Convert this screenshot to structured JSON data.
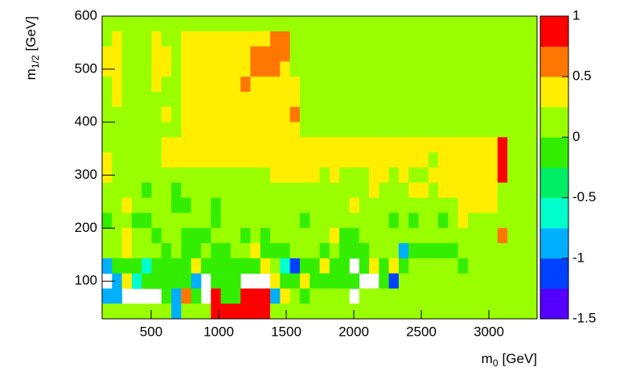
{
  "chart_data": {
    "type": "heatmap",
    "xlabel": {
      "base": "m",
      "sub": "0",
      "unit": "[GeV]"
    },
    "ylabel": {
      "base": "m",
      "sub": "1/2",
      "unit": "[GeV]"
    },
    "xlim": [
      137,
      3357
    ],
    "xticks": [
      500,
      1000,
      1500,
      2000,
      2500,
      3000
    ],
    "ylim": [
      29,
      600
    ],
    "yticks": [
      100,
      200,
      300,
      400,
      500,
      600
    ],
    "zlim": [
      -1.5,
      1
    ],
    "zticks": [
      -1.5,
      -1,
      -0.5,
      0,
      0.5,
      1
    ],
    "colors": [
      "#5500ff",
      "#0040ff",
      "#00b0ff",
      "#00ffcc",
      "#00ee66",
      "#33ee00",
      "#99ff00",
      "#ffee00",
      "#ff7700",
      "#ff0000"
    ],
    "z": [
      [
        0.1,
        0.1,
        0.1,
        0.1,
        0.1,
        0.1,
        0.1,
        0.1,
        0.1,
        0.1,
        0.1,
        0.1,
        0.1,
        0.1,
        0.1,
        0.1,
        0.1,
        0.1,
        0.1,
        0.1,
        0.1,
        0.1,
        0.1,
        0.1,
        0.1,
        0.1,
        0.1,
        0.1,
        0.1,
        0.1,
        0.1,
        0.1,
        0.1,
        0.1,
        0.1,
        0.1,
        0.1,
        0.1,
        0.1,
        0.1,
        0.1,
        0.1,
        0.1,
        0.1
      ],
      [
        0.1,
        0.4,
        0.1,
        0.1,
        0.1,
        0.4,
        0.1,
        0.1,
        0.4,
        0.4,
        0.4,
        0.4,
        0.4,
        0.4,
        0.4,
        0.4,
        0.4,
        0.6,
        0.6,
        0.1,
        0.1,
        0.1,
        0.1,
        0.1,
        0.1,
        0.1,
        0.1,
        0.1,
        0.1,
        0.1,
        0.1,
        0.1,
        0.1,
        0.1,
        0.1,
        0.1,
        0.1,
        0.1,
        0.1,
        0.1,
        0.1,
        0.1,
        0.1,
        0.1
      ],
      [
        0.4,
        0.4,
        0.1,
        0.1,
        0.1,
        0.4,
        0.4,
        0.1,
        0.4,
        0.4,
        0.4,
        0.4,
        0.4,
        0.4,
        0.4,
        0.6,
        0.6,
        0.6,
        0.6,
        0.1,
        0.1,
        0.1,
        0.1,
        0.1,
        0.1,
        0.1,
        0.1,
        0.1,
        0.1,
        0.1,
        0.1,
        0.1,
        0.1,
        0.1,
        0.1,
        0.1,
        0.1,
        0.1,
        0.1,
        0.1,
        0.1,
        0.1,
        0.1,
        0.1
      ],
      [
        0.4,
        0.4,
        0.1,
        0.1,
        0.1,
        0.4,
        0.4,
        0.1,
        0.4,
        0.4,
        0.4,
        0.4,
        0.4,
        0.4,
        0.4,
        0.6,
        0.6,
        0.6,
        0.4,
        0.1,
        0.1,
        0.1,
        0.1,
        0.1,
        0.1,
        0.1,
        0.1,
        0.1,
        0.1,
        0.1,
        0.1,
        0.1,
        0.1,
        0.1,
        0.1,
        0.1,
        0.1,
        0.1,
        0.1,
        0.1,
        0.1,
        0.1,
        0.1,
        0.1
      ],
      [
        0.1,
        0.4,
        0.1,
        0.1,
        0.1,
        0.4,
        0.1,
        0.1,
        0.4,
        0.4,
        0.4,
        0.4,
        0.4,
        0.4,
        0.6,
        0.4,
        0.4,
        0.4,
        0.4,
        0.4,
        0.1,
        0.1,
        0.1,
        0.1,
        0.1,
        0.1,
        0.1,
        0.1,
        0.1,
        0.1,
        0.1,
        0.1,
        0.1,
        0.1,
        0.1,
        0.1,
        0.1,
        0.1,
        0.1,
        0.1,
        0.1,
        0.1,
        0.1,
        0.1
      ],
      [
        0.1,
        0.4,
        0.1,
        0.1,
        0.1,
        0.1,
        0.1,
        0.1,
        0.4,
        0.4,
        0.4,
        0.4,
        0.4,
        0.4,
        0.4,
        0.4,
        0.4,
        0.4,
        0.4,
        0.4,
        0.1,
        0.1,
        0.1,
        0.1,
        0.1,
        0.1,
        0.1,
        0.1,
        0.1,
        0.1,
        0.1,
        0.1,
        0.1,
        0.1,
        0.1,
        0.1,
        0.1,
        0.1,
        0.1,
        0.1,
        0.1,
        0.1,
        0.1,
        0.1
      ],
      [
        0.1,
        0.1,
        0.1,
        0.1,
        0.1,
        0.1,
        0.4,
        0.1,
        0.4,
        0.4,
        0.4,
        0.4,
        0.4,
        0.4,
        0.4,
        0.4,
        0.4,
        0.4,
        0.4,
        0.6,
        0.1,
        0.1,
        0.1,
        0.1,
        0.1,
        0.1,
        0.1,
        0.1,
        0.1,
        0.1,
        0.1,
        0.1,
        0.1,
        0.1,
        0.1,
        0.1,
        0.1,
        0.1,
        0.1,
        0.1,
        0.1,
        0.1,
        0.1,
        0.1
      ],
      [
        0.1,
        0.1,
        0.1,
        0.1,
        0.1,
        0.1,
        0.1,
        0.1,
        0.4,
        0.4,
        0.4,
        0.4,
        0.4,
        0.4,
        0.4,
        0.4,
        0.4,
        0.4,
        0.4,
        0.4,
        0.1,
        0.1,
        0.1,
        0.1,
        0.1,
        0.1,
        0.1,
        0.1,
        0.1,
        0.1,
        0.1,
        0.1,
        0.1,
        0.1,
        0.1,
        0.1,
        0.1,
        0.1,
        0.1,
        0.1,
        0.1,
        0.1,
        0.1,
        0.1
      ],
      [
        0.1,
        0.1,
        0.1,
        0.1,
        0.1,
        0.1,
        0.4,
        0.4,
        0.4,
        0.4,
        0.4,
        0.4,
        0.4,
        0.4,
        0.4,
        0.4,
        0.4,
        0.4,
        0.4,
        0.4,
        0.4,
        0.4,
        0.4,
        0.4,
        0.4,
        0.4,
        0.4,
        0.4,
        0.4,
        0.4,
        0.4,
        0.4,
        0.4,
        0.4,
        0.4,
        0.4,
        0.4,
        0.4,
        0.4,
        0.4,
        0.9,
        0.1,
        0.1,
        0.1
      ],
      [
        0.4,
        0.1,
        0.1,
        0.1,
        0.1,
        0.1,
        0.4,
        0.4,
        0.4,
        0.4,
        0.4,
        0.4,
        0.4,
        0.4,
        0.4,
        0.4,
        0.4,
        0.4,
        0.4,
        0.4,
        0.4,
        0.4,
        0.4,
        0.4,
        0.4,
        0.4,
        0.4,
        0.4,
        0.4,
        0.4,
        0.4,
        0.4,
        0.4,
        0.1,
        0.4,
        0.4,
        0.4,
        0.4,
        0.4,
        0.4,
        0.9,
        0.1,
        0.1,
        0.1
      ],
      [
        0.4,
        0.1,
        0.1,
        0.1,
        0.1,
        0.1,
        0.1,
        0.1,
        0.1,
        0.1,
        0.1,
        0.1,
        0.1,
        0.1,
        0.1,
        0.1,
        0.1,
        0.4,
        0.4,
        0.4,
        0.4,
        0.4,
        0.1,
        0.4,
        0.1,
        0.1,
        0.1,
        0.4,
        0.4,
        0.1,
        0.4,
        0.1,
        0.1,
        0.4,
        0.4,
        0.4,
        0.4,
        0.4,
        0.4,
        0.4,
        0.9,
        0.1,
        0.1,
        0.1
      ],
      [
        0.1,
        0.1,
        0.1,
        0.1,
        -0.1,
        0.1,
        0.1,
        -0.1,
        0.1,
        0.1,
        0.1,
        0.1,
        0.1,
        0.1,
        0.1,
        0.1,
        0.1,
        0.1,
        0.1,
        0.1,
        0.1,
        0.1,
        0.1,
        0.1,
        0.1,
        0.1,
        0.1,
        0.4,
        0.1,
        0.1,
        0.1,
        0.4,
        0.4,
        0.1,
        0.4,
        0.4,
        0.4,
        0.4,
        0.4,
        0.4,
        0.1,
        0.1,
        0.1,
        0.1
      ],
      [
        0.1,
        0.1,
        0.4,
        0.1,
        0.1,
        0.1,
        0.1,
        -0.1,
        -0.1,
        0.1,
        0.1,
        -0.1,
        0.1,
        0.1,
        0.1,
        0.1,
        0.1,
        0.1,
        0.1,
        0.1,
        0.1,
        0.1,
        0.1,
        0.1,
        0.1,
        0.4,
        0.1,
        0.1,
        0.1,
        0.1,
        0.1,
        0.1,
        0.1,
        0.1,
        0.1,
        0.1,
        0.4,
        0.4,
        0.4,
        0.4,
        0.1,
        0.1,
        0.1,
        0.1
      ],
      [
        -0.1,
        0.1,
        0.1,
        -0.1,
        -0.1,
        0.1,
        0.1,
        0.1,
        0.1,
        0.1,
        0.1,
        -0.1,
        0.1,
        0.1,
        0.1,
        0.1,
        0.1,
        0.1,
        0.1,
        0.1,
        -0.1,
        0.1,
        0.1,
        0.1,
        0.1,
        0.1,
        0.1,
        0.1,
        0.1,
        -0.1,
        0.1,
        -0.1,
        0.1,
        0.1,
        -0.1,
        0.1,
        0.4,
        0.1,
        0.1,
        0.1,
        0.1,
        0.1,
        0.1,
        0.1
      ],
      [
        0.1,
        0.1,
        0.4,
        0.1,
        0.1,
        -0.1,
        0.1,
        0.1,
        -0.1,
        -0.1,
        -0.1,
        0.1,
        0.1,
        0.1,
        -0.1,
        0.1,
        -0.1,
        0.1,
        0.1,
        0.1,
        0.1,
        0.1,
        0.1,
        0.4,
        -0.1,
        -0.1,
        0.1,
        0.1,
        0.1,
        0.1,
        0.1,
        0.1,
        0.1,
        0.1,
        0.1,
        0.1,
        0.1,
        0.1,
        0.1,
        0.1,
        0.6,
        0.1,
        0.1,
        0.1
      ],
      [
        0.1,
        0.1,
        0.4,
        0.1,
        0.1,
        0.1,
        -0.1,
        0.1,
        -0.1,
        -0.1,
        0.1,
        -0.1,
        -0.1,
        0.1,
        0.1,
        0.4,
        -0.1,
        -0.1,
        -0.1,
        0.1,
        0.1,
        0.1,
        -0.1,
        0.1,
        -0.1,
        -0.1,
        -0.1,
        0.1,
        0.1,
        0.1,
        -0.9,
        -0.1,
        -0.1,
        -0.1,
        -0.1,
        -0.1,
        0.1,
        0.1,
        0.1,
        0.1,
        0.1,
        0.1,
        0.1,
        0.1
      ],
      [
        -0.9,
        -0.1,
        -0.1,
        -0.1,
        -0.6,
        -0.1,
        -0.1,
        -0.1,
        -0.1,
        0.4,
        -0.1,
        -0.1,
        -0.1,
        -0.1,
        -0.1,
        -0.1,
        0.4,
        0.1,
        -0.6,
        -1.1,
        -0.1,
        -0.1,
        0.4,
        -0.1,
        -0.1,
        null,
        -0.1,
        0.4,
        -0.1,
        0.4,
        -0.1,
        0.1,
        0.1,
        0.1,
        0.1,
        0.1,
        -0.1,
        0.1,
        0.1,
        0.1,
        0.1,
        0.1,
        0.1,
        0.1
      ],
      [
        null,
        -0.9,
        0.4,
        -0.6,
        -0.1,
        -0.1,
        -0.1,
        -0.1,
        -0.1,
        -0.9,
        null,
        -0.1,
        -0.1,
        -0.1,
        null,
        null,
        null,
        0.4,
        -0.1,
        -0.1,
        0.4,
        -0.1,
        -0.1,
        -0.1,
        -0.1,
        -0.1,
        null,
        null,
        -0.1,
        -1.1,
        0.1,
        0.1,
        0.1,
        0.1,
        0.1,
        0.1,
        0.1,
        0.1,
        0.1,
        0.1,
        0.1,
        0.1,
        0.1,
        0.1
      ],
      [
        -0.9,
        -0.9,
        null,
        null,
        null,
        null,
        -0.1,
        -0.9,
        0.6,
        -0.1,
        null,
        0.9,
        -0.1,
        -0.1,
        0.9,
        0.9,
        0.9,
        -0.9,
        0.4,
        0.1,
        -0.1,
        0.1,
        0.1,
        0.1,
        0.1,
        null,
        0.1,
        0.1,
        0.1,
        0.1,
        0.1,
        0.1,
        0.1,
        0.1,
        0.1,
        0.1,
        0.1,
        0.1,
        0.1,
        0.1,
        0.1,
        0.1,
        0.1,
        0.1
      ],
      [
        0.1,
        0.1,
        0.1,
        0.1,
        0.1,
        0.1,
        0.1,
        -0.9,
        0.1,
        0.1,
        0.1,
        0.9,
        0.9,
        0.9,
        0.9,
        0.9,
        0.9,
        0.1,
        0.1,
        0.1,
        0.1,
        0.1,
        0.1,
        0.1,
        0.1,
        0.1,
        0.1,
        0.1,
        0.1,
        0.1,
        0.1,
        0.1,
        0.1,
        0.1,
        0.1,
        0.1,
        0.1,
        0.1,
        0.1,
        0.1,
        0.1,
        0.1,
        0.1,
        0.1
      ]
    ]
  }
}
